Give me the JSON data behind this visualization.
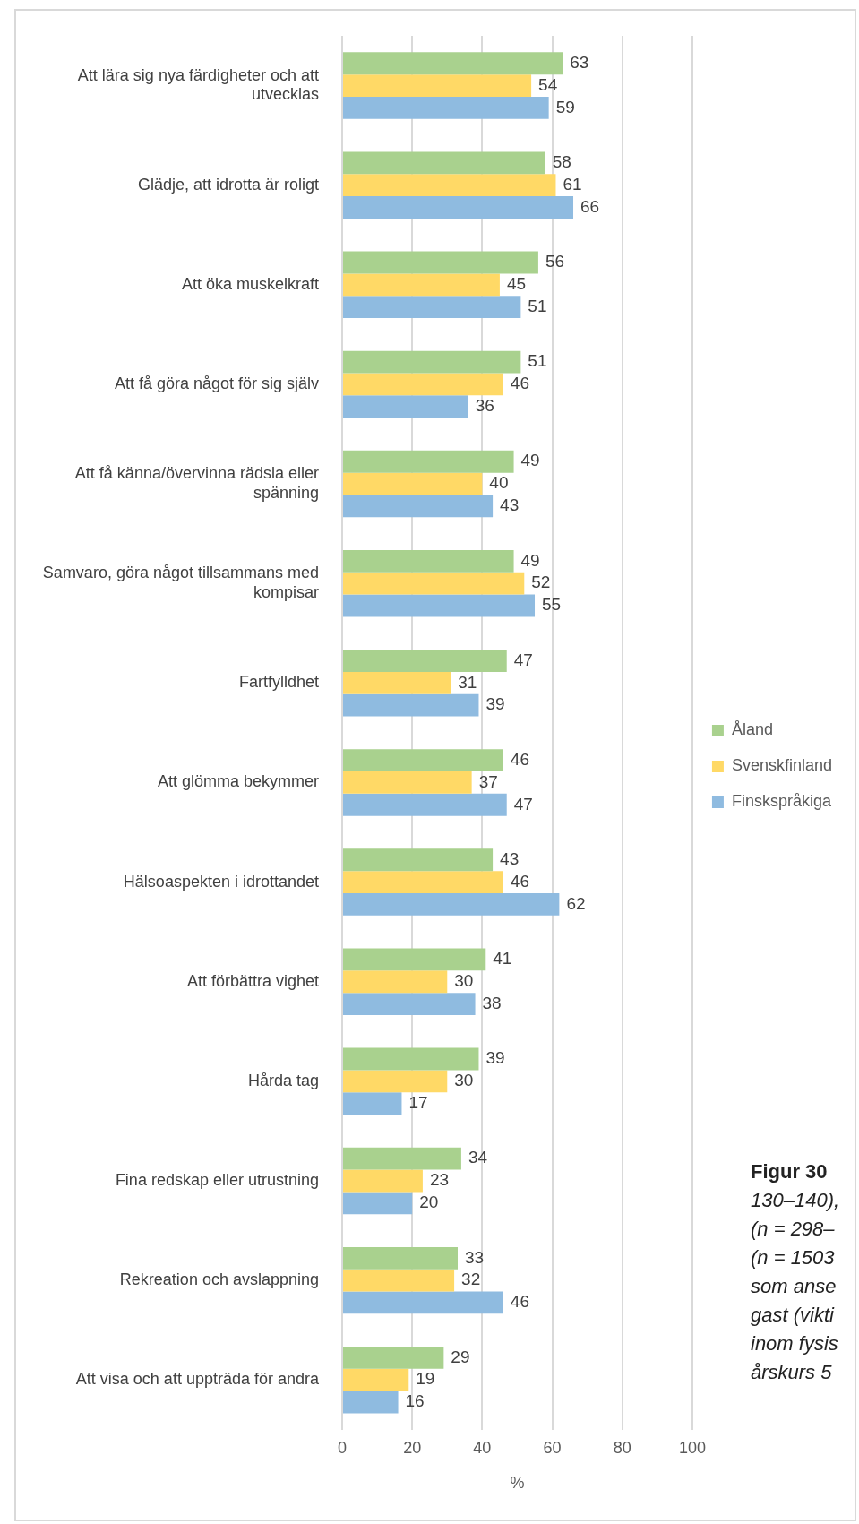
{
  "chart_data": {
    "type": "bar",
    "orientation": "horizontal",
    "xlabel": "%",
    "categories": [
      "Att lära sig nya färdigheter och att utvecklas",
      "Glädje, att idrotta är roligt",
      "Att öka muskelkraft",
      "Att få göra något för sig själv",
      "Att få känna/övervinna rädsla eller spänning",
      "Samvaro, göra något tillsammans med kompisar",
      "Fartfylldhet",
      "Att glömma bekymmer",
      "Hälsoaspekten i idrottandet",
      "Att förbättra vighet",
      "Hårda tag",
      "Fina redskap eller utrustning",
      "Rekreation och avslappning",
      "Att visa och att uppträda för andra"
    ],
    "series": [
      {
        "name": "Åland",
        "color": "#a9d18e",
        "values": [
          63,
          58,
          56,
          51,
          49,
          49,
          47,
          46,
          43,
          41,
          39,
          34,
          33,
          29
        ]
      },
      {
        "name": "Svenskfinland",
        "color": "#ffd966",
        "values": [
          54,
          61,
          45,
          46,
          40,
          52,
          31,
          37,
          46,
          30,
          30,
          23,
          32,
          19
        ]
      },
      {
        "name": "Finskspråkiga",
        "color": "#8fbbe0",
        "values": [
          59,
          66,
          51,
          36,
          43,
          55,
          39,
          47,
          62,
          38,
          17,
          20,
          46,
          16
        ]
      }
    ],
    "xlim": [
      0,
      100
    ],
    "xticks": [
      0,
      20,
      40,
      60,
      80,
      100
    ],
    "grid": "x",
    "legend": "right",
    "data_labels": true,
    "annotations": [
      "Figur 30",
      "130–140),",
      "(n = 298–",
      "(n = 1503",
      "som anse",
      "gast (vikti",
      "inom fysis",
      "årskurs 5"
    ]
  }
}
